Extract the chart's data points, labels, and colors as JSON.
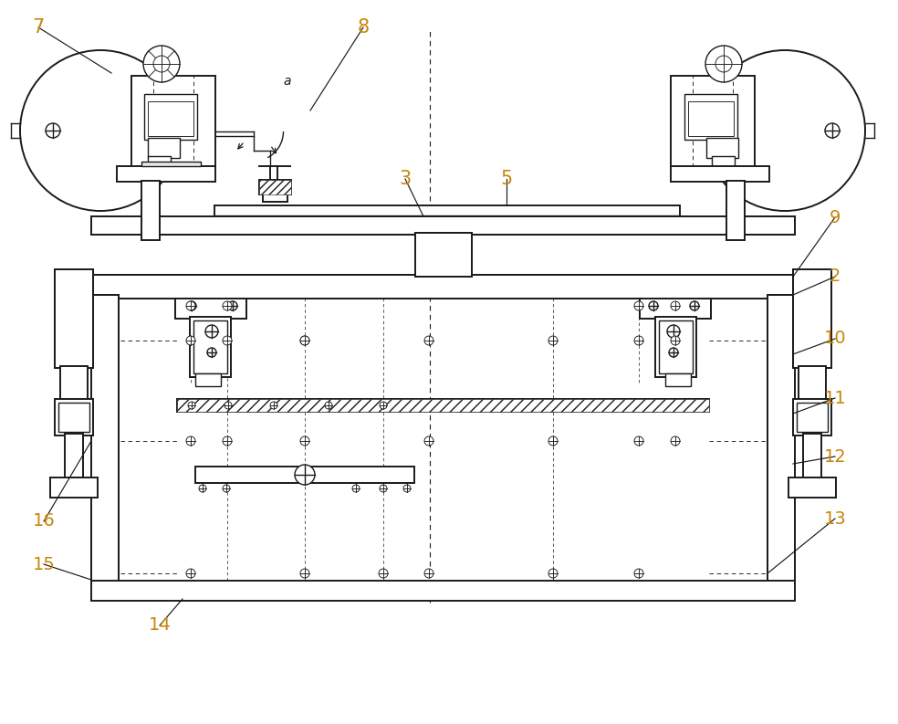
{
  "bg": "#ffffff",
  "lc": "#1a1a1a",
  "orange": "#c8860a",
  "figsize": [
    9.84,
    7.93
  ],
  "dpi": 100,
  "lw_main": 1.4,
  "lw_med": 1.0,
  "lw_thin": 0.65,
  "lw_dash": 0.65
}
